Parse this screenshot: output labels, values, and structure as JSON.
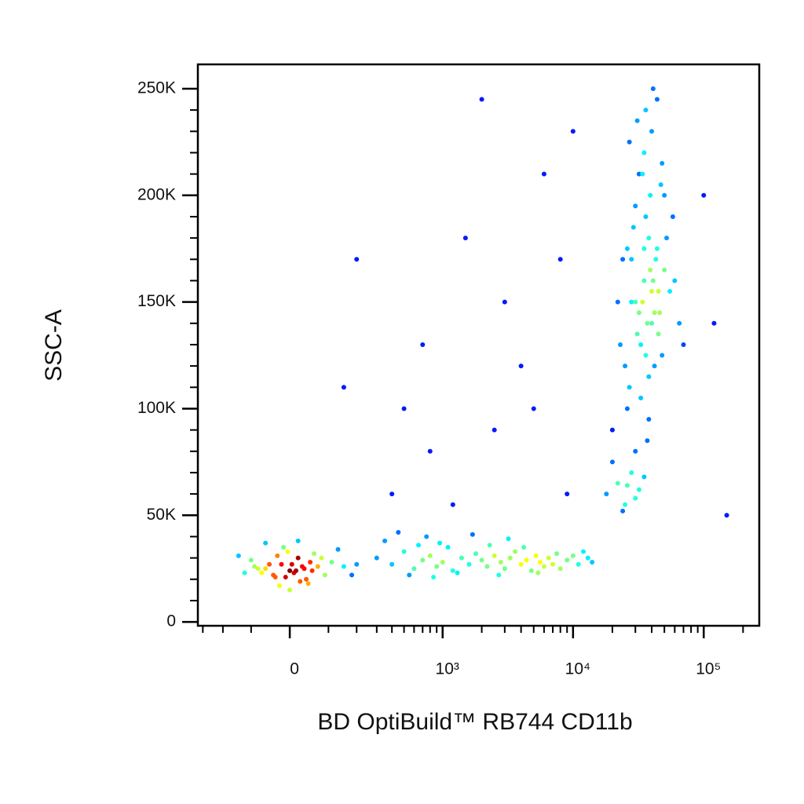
{
  "chart_data": {
    "type": "scatter",
    "x_label": "BD OptiBuild™ RB744 CD11b",
    "y_label": "SSC-A",
    "xscale": "biexponential",
    "xlim": [
      -330,
      266000
    ],
    "ylim": [
      -1800,
      261400
    ],
    "xticks": [
      0,
      {
        "value": 1000,
        "label": "10³"
      },
      {
        "value": 10000,
        "label": "10⁴"
      },
      {
        "value": 100000,
        "label": "10⁵"
      }
    ],
    "xminorticks": [
      -300,
      -200,
      -100,
      100,
      200,
      300,
      400,
      500,
      600,
      700,
      800,
      900,
      2000,
      3000,
      4000,
      5000,
      6000,
      7000,
      8000,
      9000,
      20000,
      30000,
      40000,
      50000,
      60000,
      70000,
      80000,
      90000,
      200000
    ],
    "yticks": [
      0,
      {
        "value": 50000,
        "label": "50K"
      },
      {
        "value": 100000,
        "label": "100K"
      },
      {
        "value": 150000,
        "label": "150K"
      },
      {
        "value": 200000,
        "label": "200K"
      },
      {
        "value": 250000,
        "label": "250K"
      }
    ],
    "yminorticks": [
      10000,
      20000,
      30000,
      40000,
      60000,
      70000,
      80000,
      90000,
      110000,
      120000,
      130000,
      140000,
      160000,
      170000,
      180000,
      190000,
      210000,
      220000,
      230000,
      240000
    ],
    "colormap": "jet",
    "x": [
      -60,
      -20,
      10,
      30,
      -40,
      0,
      50,
      -80,
      20,
      -10,
      70,
      -30,
      40,
      -50,
      15,
      -5,
      90,
      -100,
      25,
      60,
      -70,
      35,
      -15,
      5,
      45,
      -35,
      80,
      -90,
      55,
      -25,
      110,
      -120,
      130,
      150,
      -140,
      200,
      180,
      -60,
      0,
      20,
      300,
      400,
      500,
      600,
      700,
      800,
      900,
      1000,
      1100,
      1200,
      1400,
      1600,
      1800,
      2000,
      2200,
      2500,
      2800,
      3000,
      3300,
      3600,
      4000,
      4400,
      4800,
      5200,
      5600,
      6000,
      6500,
      7000,
      7500,
      8000,
      9000,
      10000,
      11000,
      12000,
      13000,
      14000,
      350,
      450,
      550,
      650,
      750,
      850,
      950,
      1300,
      1700,
      2300,
      2700,
      3200,
      4200,
      5400,
      18000,
      22000,
      25000,
      28000,
      32000,
      20000,
      24000,
      35000,
      30000,
      26000,
      30000,
      35000,
      40000,
      28000,
      45000,
      33000,
      38000,
      42000,
      25000,
      50000,
      36000,
      31000,
      44000,
      27000,
      39000,
      34000,
      48000,
      29000,
      41000,
      37000,
      32000,
      46000,
      26000,
      43000,
      35000,
      55000,
      23000,
      40000,
      38000,
      30000,
      60000,
      20000,
      47000,
      33000,
      36000,
      52000,
      28000,
      42000,
      39000,
      34000,
      65000,
      24000,
      45000,
      31000,
      37000,
      58000,
      27000,
      40000,
      35000,
      44000,
      70000,
      22000,
      38000,
      32000,
      48000,
      30000,
      41000,
      36000,
      50000,
      26000,
      500,
      1500,
      3000,
      800,
      2000,
      6000,
      10000,
      150,
      400,
      1200,
      4000,
      8000,
      200,
      120000,
      150000,
      100000,
      700,
      2500,
      9000,
      5000
    ],
    "y": [
      25000,
      27000,
      23000,
      26000,
      22000,
      24000,
      28000,
      25000,
      30000,
      21000,
      26000,
      31000,
      20000,
      27000,
      24000,
      33000,
      22000,
      29000,
      19000,
      32000,
      23000,
      25000,
      35000,
      27000,
      18000,
      21000,
      30000,
      26000,
      24000,
      17000,
      28000,
      23000,
      34000,
      26000,
      31000,
      27000,
      22000,
      37000,
      15000,
      38000,
      30000,
      27000,
      33000,
      25000,
      29000,
      31000,
      26000,
      28000,
      35000,
      24000,
      30000,
      27000,
      32000,
      29000,
      26000,
      31000,
      28000,
      25000,
      30000,
      33000,
      27000,
      29000,
      24000,
      31000,
      28000,
      26000,
      30000,
      27000,
      32000,
      25000,
      29000,
      31000,
      27000,
      33000,
      30000,
      28000,
      38000,
      42000,
      22000,
      36000,
      40000,
      21000,
      37000,
      23000,
      41000,
      36000,
      22000,
      39000,
      35000,
      23000,
      60000,
      65000,
      55000,
      70000,
      62000,
      75000,
      52000,
      68000,
      58000,
      64000,
      150000,
      160000,
      140000,
      170000,
      155000,
      130000,
      180000,
      145000,
      120000,
      165000,
      190000,
      135000,
      175000,
      110000,
      200000,
      150000,
      125000,
      185000,
      160000,
      140000,
      210000,
      145000,
      100000,
      170000,
      220000,
      155000,
      130000,
      230000,
      115000,
      195000,
      160000,
      90000,
      205000,
      105000,
      240000,
      180000,
      150000,
      120000,
      165000,
      210000,
      140000,
      170000,
      135000,
      235000,
      85000,
      190000,
      225000,
      155000,
      175000,
      245000,
      130000,
      150000,
      95000,
      145000,
      215000,
      80000,
      250000,
      125000,
      200000,
      175000,
      100000,
      180000,
      150000,
      80000,
      245000,
      210000,
      230000,
      110000,
      60000,
      55000,
      120000,
      170000,
      170000,
      140000,
      50000,
      200000,
      130000,
      90000,
      60000,
      100000
    ]
  }
}
